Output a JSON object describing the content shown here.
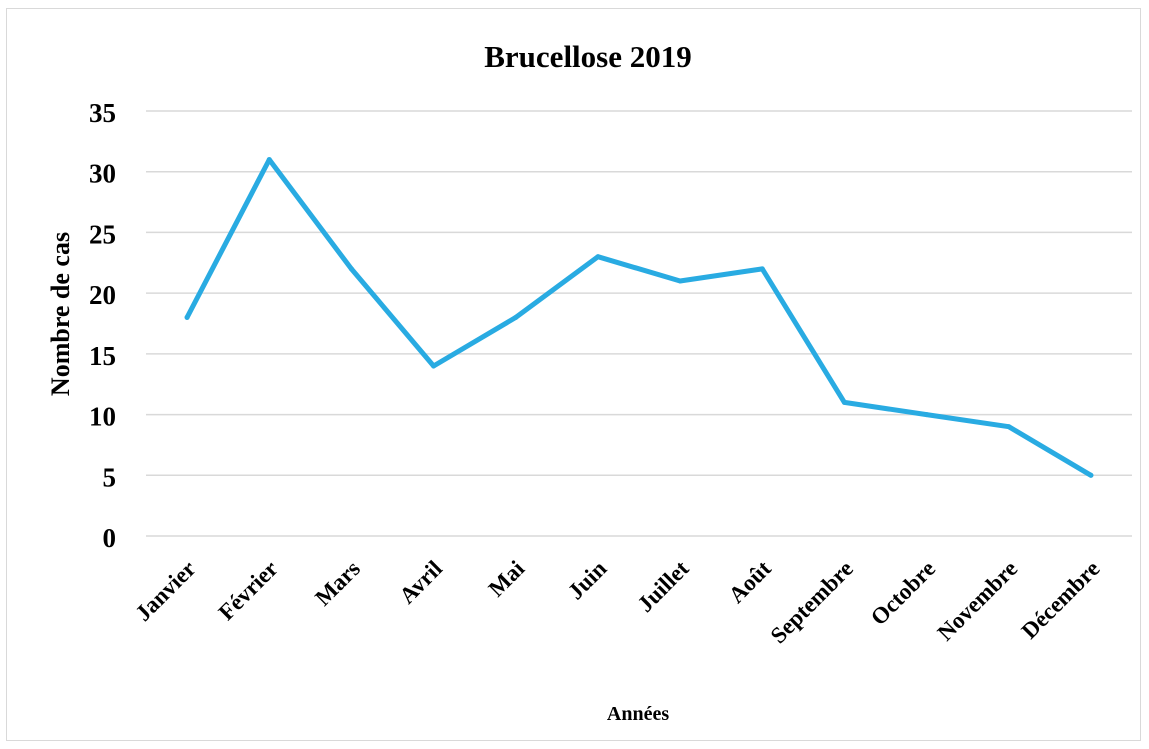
{
  "chart_data": {
    "type": "line",
    "title": "Brucellose 2019",
    "xlabel": "Années",
    "ylabel": "Nombre de cas",
    "categories": [
      "Janvier",
      "Février",
      "Mars",
      "Avril",
      "Mai",
      "Juin",
      "Juillet",
      "Août",
      "Septembre",
      "Octobre",
      "Novembre",
      "Décembre"
    ],
    "series": [
      {
        "values": [
          18,
          31,
          22,
          14,
          18,
          23,
          21,
          22,
          11,
          10,
          9,
          5
        ]
      }
    ],
    "ylim": [
      0,
      35
    ],
    "yticks": [
      0,
      5,
      10,
      15,
      20,
      25,
      30,
      35
    ],
    "grid": true,
    "legend": "none",
    "line_color": "#29abe2",
    "grid_color": "#d9d9d9"
  }
}
